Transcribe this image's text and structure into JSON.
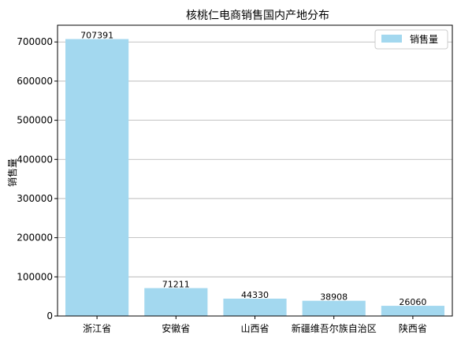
{
  "chart_data": {
    "type": "bar",
    "title": "核桃仁电商销售国内产地分布",
    "xlabel": "",
    "ylabel": "销售量",
    "categories": [
      "浙江省",
      "安徽省",
      "山西省",
      "新疆维吾尔族自治区",
      "陕西省"
    ],
    "series": [
      {
        "name": "销售量",
        "values": [
          707391,
          71211,
          44330,
          38908,
          26060
        ]
      }
    ],
    "ylim": [
      0,
      742760
    ],
    "yticks": [
      0,
      100000,
      200000,
      300000,
      400000,
      500000,
      600000,
      700000
    ],
    "grid": "y",
    "legend_position": "top-right",
    "bar_color": "#a3d8ef"
  }
}
